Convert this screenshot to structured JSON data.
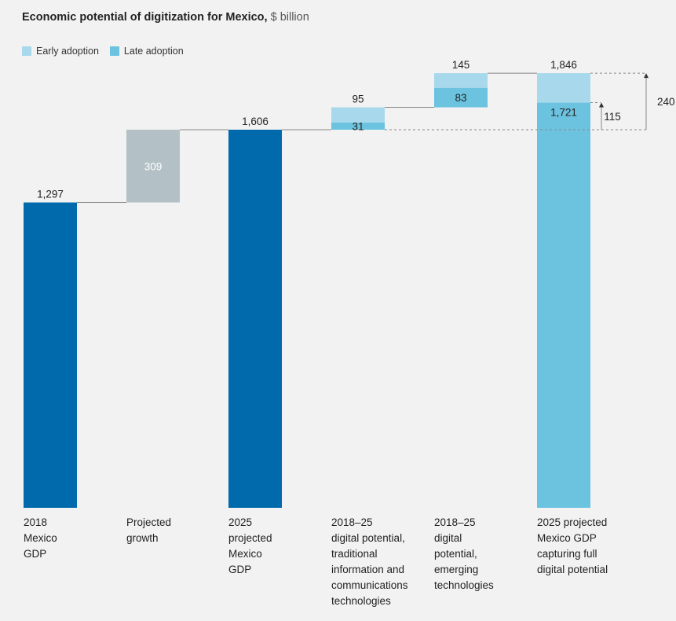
{
  "header": {
    "title_bold": "Economic potential of digitization  for Mexico,",
    "title_unit": "$ billion"
  },
  "legend": [
    {
      "name": "Early adoption",
      "color": "#a8d8eb"
    },
    {
      "name": "Late adoption",
      "color": "#6cc3e0"
    }
  ],
  "colors": {
    "dark_blue": "#006aad",
    "gray": "#b3c1c6",
    "early": "#a8d8eb",
    "late": "#6cc3e0",
    "connector": "#888888"
  },
  "chart_data": {
    "type": "bar",
    "subtype": "waterfall",
    "title": "Economic potential of digitization  for Mexico, $ billion",
    "unit": "$ billion",
    "categories": [
      [
        "2018",
        "Mexico",
        "GDP"
      ],
      [
        "Projected",
        "growth"
      ],
      [
        "2025",
        "projected",
        "Mexico",
        "GDP"
      ],
      [
        "2018–25",
        "digital potential,",
        "traditional",
        "information and",
        "communications",
        "technologies"
      ],
      [
        "2018–25",
        "digital",
        "potential,",
        "emerging",
        "technologies"
      ],
      [
        "2025 projected",
        "Mexico GDP",
        "capturing full",
        "digital potential"
      ]
    ],
    "bars": [
      {
        "kind": "total",
        "value": 1297,
        "label": "1,297"
      },
      {
        "kind": "increment",
        "start": 1297,
        "value": 309,
        "label": "309"
      },
      {
        "kind": "total",
        "value": 1606,
        "label": "1,606"
      },
      {
        "kind": "stack",
        "start": 1606,
        "late": 31,
        "early": 64,
        "late_label": "31",
        "top_label": "95"
      },
      {
        "kind": "stack",
        "start": 1701,
        "late": 83,
        "early": 62,
        "late_label": "83",
        "top_label": "145"
      },
      {
        "kind": "final",
        "late_total": 1721,
        "total": 1846,
        "late_label": "1,721",
        "top_label": "1,846"
      }
    ],
    "brackets": [
      {
        "from": 1606,
        "to": 1721,
        "label": "115"
      },
      {
        "from": 1606,
        "to": 1846,
        "label": "240"
      }
    ]
  }
}
